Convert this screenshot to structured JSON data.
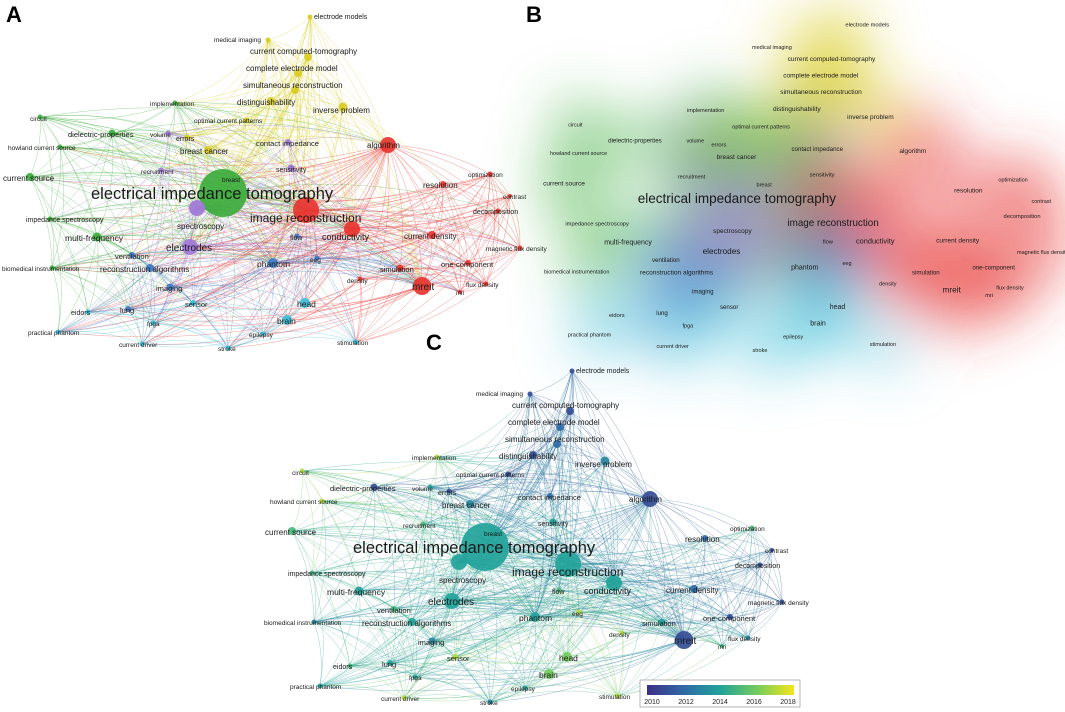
{
  "panels": [
    {
      "id": "A",
      "letter": "A",
      "style": "network"
    },
    {
      "id": "B",
      "letter": "B",
      "style": "density"
    },
    {
      "id": "C",
      "letter": "C",
      "style": "overlay"
    }
  ],
  "colors": {
    "red": "#e8342f",
    "yellow": "#d9cc20",
    "green": "#3cad3c",
    "purple": "#9f77d9",
    "blue": "#3e79c8",
    "cyan": "#3bbfd9"
  },
  "colorbar": {
    "ticks": [
      "2010",
      "2012",
      "2014",
      "2016",
      "2018"
    ],
    "stops": [
      "#3b2f86",
      "#2f6aa6",
      "#22a39a",
      "#74cc5c",
      "#f5e51f"
    ]
  },
  "nodes": [
    {
      "label": "electrode models",
      "cluster": "yellow",
      "year": 2011
    },
    {
      "label": "medical imaging",
      "cluster": "yellow",
      "year": 2011
    },
    {
      "label": "current computed-tomography",
      "cluster": "yellow",
      "year": 2011
    },
    {
      "label": "complete electrode model",
      "cluster": "yellow",
      "year": 2012
    },
    {
      "label": "simultaneous reconstruction",
      "cluster": "yellow",
      "year": 2012
    },
    {
      "label": "distinguishability",
      "cluster": "yellow",
      "year": 2011
    },
    {
      "label": "inverse problem",
      "cluster": "yellow",
      "year": 2013
    },
    {
      "label": "implementation",
      "cluster": "green",
      "year": 2017
    },
    {
      "label": "optimal current patterns",
      "cluster": "yellow",
      "year": 2011
    },
    {
      "label": "circuit",
      "cluster": "green",
      "year": 2017
    },
    {
      "label": "dielectric-properties",
      "cluster": "green",
      "year": 2011
    },
    {
      "label": "volume",
      "cluster": "purple",
      "year": 2014
    },
    {
      "label": "errors",
      "cluster": "yellow",
      "year": 2011
    },
    {
      "label": "breast cancer",
      "cluster": "yellow",
      "year": 2013
    },
    {
      "label": "contact impedance",
      "cluster": "purple",
      "year": 2012
    },
    {
      "label": "algorithm",
      "cluster": "red",
      "year": 2011
    },
    {
      "label": "howland current source",
      "cluster": "green",
      "year": 2017
    },
    {
      "label": "recruitment",
      "cluster": "purple",
      "year": 2015
    },
    {
      "label": "breast",
      "cluster": "purple",
      "year": 2013
    },
    {
      "label": "sensitivity",
      "cluster": "purple",
      "year": 2014
    },
    {
      "label": "optimization",
      "cluster": "red",
      "year": 2015
    },
    {
      "label": "current source",
      "cluster": "green",
      "year": 2015
    },
    {
      "label": "resolution",
      "cluster": "red",
      "year": 2012
    },
    {
      "label": "contrast",
      "cluster": "red",
      "year": 2011
    },
    {
      "label": "electrical impedance tomography",
      "cluster": "green",
      "year": 2014
    },
    {
      "label": "decomposition",
      "cluster": "red",
      "year": 2011
    },
    {
      "label": "impedance spectroscopy",
      "cluster": "green",
      "year": 2015
    },
    {
      "label": "spectroscopy",
      "cluster": "purple",
      "year": 2014
    },
    {
      "label": "image reconstruction",
      "cluster": "red",
      "year": 2014
    },
    {
      "label": "multi-frequency",
      "cluster": "green",
      "year": 2014
    },
    {
      "label": "conductivity",
      "cluster": "red",
      "year": 2014
    },
    {
      "label": "current density",
      "cluster": "red",
      "year": 2012
    },
    {
      "label": "electrodes",
      "cluster": "purple",
      "year": 2014
    },
    {
      "label": "magnetic flux density",
      "cluster": "red",
      "year": 2011
    },
    {
      "label": "biomedical instrumentation",
      "cluster": "green",
      "year": 2013
    },
    {
      "label": "ventilation",
      "cluster": "blue",
      "year": 2015
    },
    {
      "label": "flow",
      "cluster": "blue",
      "year": 2015
    },
    {
      "label": "eeg",
      "cluster": "blue",
      "year": 2017
    },
    {
      "label": "reconstruction algorithms",
      "cluster": "blue",
      "year": 2014
    },
    {
      "label": "phantom",
      "cluster": "blue",
      "year": 2014
    },
    {
      "label": "one-component",
      "cluster": "red",
      "year": 2011
    },
    {
      "label": "simulation",
      "cluster": "red",
      "year": 2014
    },
    {
      "label": "density",
      "cluster": "red",
      "year": 2017
    },
    {
      "label": "imaging",
      "cluster": "blue",
      "year": 2013
    },
    {
      "label": "mreit",
      "cluster": "red",
      "year": 2011
    },
    {
      "label": "flux density",
      "cluster": "red",
      "year": 2013
    },
    {
      "label": "mri",
      "cluster": "red",
      "year": 2015
    },
    {
      "label": "head",
      "cluster": "cyan",
      "year": 2016
    },
    {
      "label": "sensor",
      "cluster": "cyan",
      "year": 2017
    },
    {
      "label": "eidors",
      "cluster": "cyan",
      "year": 2015
    },
    {
      "label": "lung",
      "cluster": "blue",
      "year": 2014
    },
    {
      "label": "brain",
      "cluster": "cyan",
      "year": 2016
    },
    {
      "label": "fpga",
      "cluster": "cyan",
      "year": 2014
    },
    {
      "label": "practical phantom",
      "cluster": "cyan",
      "year": 2014
    },
    {
      "label": "epilepsy",
      "cluster": "cyan",
      "year": 2014
    },
    {
      "label": "current driver",
      "cluster": "cyan",
      "year": 2017
    },
    {
      "label": "stroke",
      "cluster": "cyan",
      "year": 2013
    },
    {
      "label": "stimulation",
      "cluster": "cyan",
      "year": 2017
    }
  ]
}
